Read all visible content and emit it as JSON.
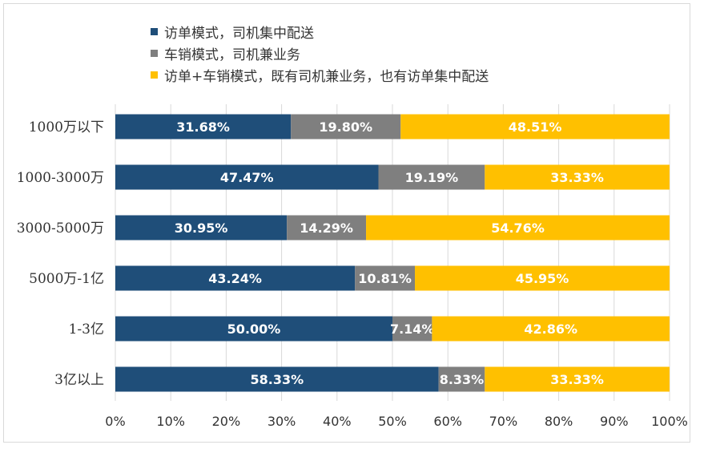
{
  "chart_data": {
    "type": "bar",
    "orientation": "horizontal",
    "stacked": true,
    "categories": [
      "1000万以下",
      "1000-3000万",
      "3000-5000万",
      "5000万-1亿",
      "1-3亿",
      "3亿以上"
    ],
    "series": [
      {
        "name": "访单模式，司机集中配送",
        "color": "#1f4e79",
        "values": [
          31.68,
          47.47,
          30.95,
          43.24,
          50.0,
          58.33
        ],
        "labels": [
          "31.68%",
          "47.47%",
          "30.95%",
          "43.24%",
          "50.00%",
          "58.33%"
        ]
      },
      {
        "name": "车销模式，司机兼业务",
        "color": "#7f7f7f",
        "values": [
          19.8,
          19.19,
          14.29,
          10.81,
          7.14,
          8.33
        ],
        "labels": [
          "19.80%",
          "19.19%",
          "14.29%",
          "10.81%",
          "7.14%",
          "8.33%"
        ]
      },
      {
        "name": "访单+车销模式，既有司机兼业务，也有访单集中配送",
        "color": "#ffc000",
        "values": [
          48.51,
          33.33,
          54.76,
          45.95,
          42.86,
          33.33
        ],
        "labels": [
          "48.51%",
          "33.33%",
          "54.76%",
          "45.95%",
          "42.86%",
          "33.33%"
        ]
      }
    ],
    "xlim": [
      0,
      100
    ],
    "xticks": [
      "0%",
      "10%",
      "20%",
      "30%",
      "40%",
      "50%",
      "60%",
      "70%",
      "80%",
      "90%",
      "100%"
    ],
    "grid": true,
    "legend": "top-left"
  }
}
